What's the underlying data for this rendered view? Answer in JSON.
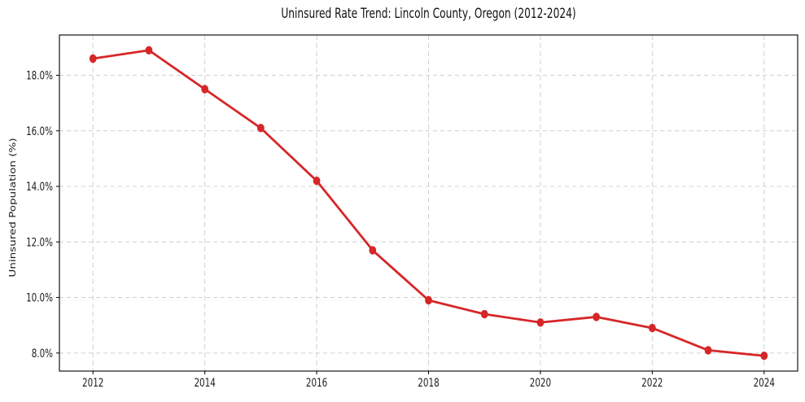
{
  "chart_data": {
    "type": "line",
    "title": "Uninsured Rate Trend: Lincoln County, Oregon (2012-2024)",
    "xlabel": "",
    "ylabel": "Uninsured Population (%)",
    "x": [
      2012,
      2013,
      2014,
      2015,
      2016,
      2017,
      2018,
      2019,
      2020,
      2021,
      2022,
      2023,
      2024
    ],
    "values": [
      18.6,
      18.9,
      17.5,
      16.1,
      14.2,
      11.7,
      9.9,
      9.4,
      9.1,
      9.3,
      8.9,
      8.1,
      7.9
    ],
    "units": "%",
    "xlim": [
      2011.4,
      2024.6
    ],
    "ylim": [
      7.35,
      19.45
    ],
    "x_ticks": {
      "values": [
        2012,
        2014,
        2016,
        2018,
        2020,
        2022,
        2024
      ],
      "labels": [
        "2012",
        "2014",
        "2016",
        "2018",
        "2020",
        "2022",
        "2024"
      ]
    },
    "y_ticks": {
      "values": [
        8,
        10,
        12,
        14,
        16,
        18
      ],
      "labels": [
        "8.0%",
        "10.0%",
        "12.0%",
        "14.0%",
        "16.0%",
        "18.0%"
      ]
    },
    "grid": {
      "visible": true,
      "style": "dashed"
    },
    "legend": {
      "visible": false
    },
    "marker": "circle",
    "line_width": 2.8,
    "colors": {
      "line": "#d62728",
      "marker": "#d62728",
      "grid": "#d0d0d0",
      "axes": "#000000",
      "text": "#1a1a1a",
      "background": "#ffffff"
    }
  }
}
